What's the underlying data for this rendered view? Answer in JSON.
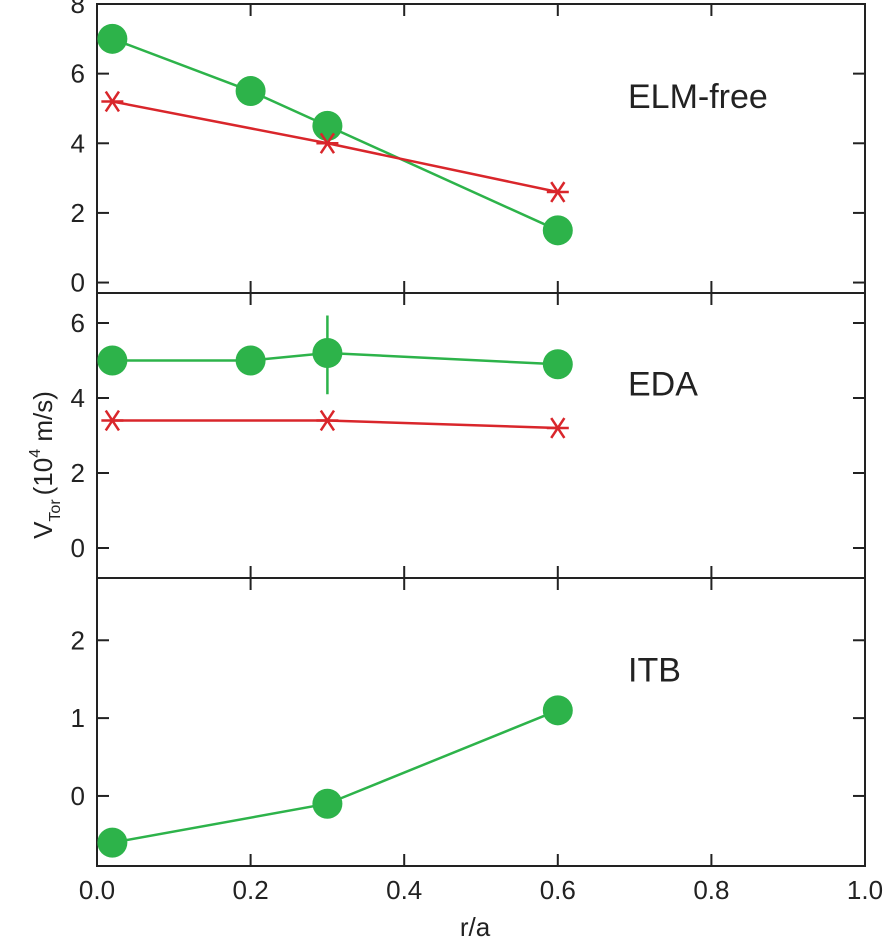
{
  "chart_data": {
    "type": "line",
    "xlabel": "r/a",
    "ylabel": "V",
    "ylabel_sub": "Tor",
    "ylabel_unit_open": "(10",
    "ylabel_unit_exp": "4",
    "ylabel_unit_close": " m/s)",
    "xlim": [
      0.0,
      1.0
    ],
    "xticks": [
      0.0,
      0.2,
      0.4,
      0.6,
      0.8,
      1.0
    ],
    "xtick_labels": [
      "0.0",
      "0.2",
      "0.4",
      "0.6",
      "0.8",
      "1.0"
    ],
    "colors": {
      "circle_series": "#2db34a",
      "star_series": "#d9262b",
      "axis": "#222222"
    },
    "panels": [
      {
        "label": "ELM-free",
        "ylim": [
          -0.3,
          8.0
        ],
        "yticks": [
          0,
          2,
          4,
          6,
          8
        ],
        "ytick_labels": [
          "0",
          "2",
          "4",
          "6",
          "8"
        ],
        "series": [
          {
            "marker": "circle",
            "x": [
              0.02,
              0.2,
              0.3,
              0.6
            ],
            "y": [
              7.0,
              5.5,
              4.5,
              1.5
            ]
          },
          {
            "marker": "star",
            "x": [
              0.02,
              0.3,
              0.6
            ],
            "y": [
              5.2,
              4.0,
              2.6
            ]
          }
        ]
      },
      {
        "label": "EDA",
        "ylim": [
          -0.8,
          6.8
        ],
        "yticks": [
          0,
          2,
          4,
          6
        ],
        "ytick_labels": [
          "0",
          "2",
          "4",
          "6"
        ],
        "series": [
          {
            "marker": "circle",
            "x": [
              0.02,
              0.2,
              0.3,
              0.6
            ],
            "y": [
              5.0,
              5.0,
              5.2,
              4.9
            ],
            "error_bar": {
              "x": 0.3,
              "low": 4.1,
              "high": 6.2
            }
          },
          {
            "marker": "star",
            "x": [
              0.02,
              0.3,
              0.6
            ],
            "y": [
              3.4,
              3.4,
              3.2
            ]
          }
        ]
      },
      {
        "label": "ITB",
        "ylim": [
          -0.9,
          2.8
        ],
        "yticks": [
          0,
          1,
          2
        ],
        "ytick_labels": [
          "0",
          "1",
          "2"
        ],
        "series": [
          {
            "marker": "circle",
            "x": [
              0.02,
              0.3,
              0.6
            ],
            "y": [
              -0.6,
              -0.1,
              1.1
            ]
          }
        ]
      }
    ]
  }
}
